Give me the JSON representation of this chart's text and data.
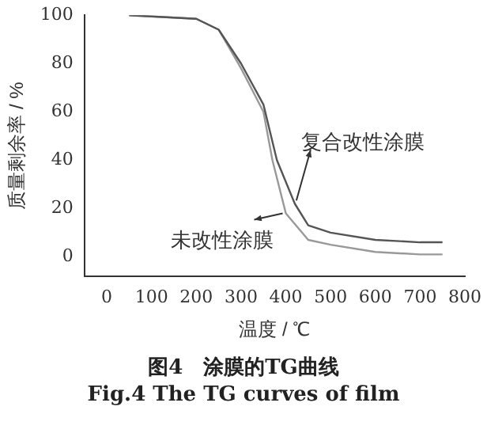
{
  "chart_data": {
    "type": "line",
    "title": "图4　涂膜的TG曲线",
    "subtitle": "Fig.4 The TG curves of film",
    "xlabel": "温度 / ℃",
    "ylabel": "质量剩余率 / %",
    "xlim": [
      -50,
      800
    ],
    "xticks": [
      0,
      100,
      200,
      300,
      400,
      500,
      600,
      700,
      800
    ],
    "ylim": [
      -8,
      100
    ],
    "yticks": [
      0,
      20,
      40,
      60,
      80,
      100
    ],
    "grid": false,
    "legend": false,
    "marker": "none",
    "line_style": "solid",
    "series": [
      {
        "name": "复合改性涂膜",
        "color": "#555555",
        "x": [
          50,
          200,
          250,
          300,
          350,
          380,
          420,
          450,
          500,
          600,
          700,
          750
        ],
        "values": [
          100,
          98.5,
          94,
          80,
          63,
          40,
          22,
          13,
          10,
          7,
          6,
          6
        ]
      },
      {
        "name": "未改性涂膜",
        "color": "#999999",
        "x": [
          50,
          200,
          250,
          300,
          350,
          370,
          400,
          450,
          500,
          600,
          700,
          750
        ],
        "values": [
          100,
          98.5,
          94,
          78,
          60,
          40,
          18,
          7,
          5,
          2,
          1,
          1
        ]
      }
    ]
  }
}
